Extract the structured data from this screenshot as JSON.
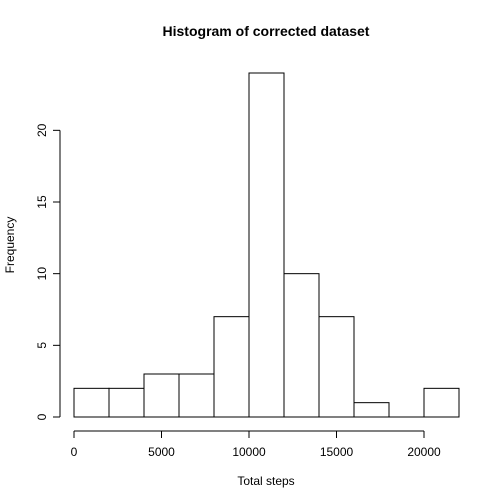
{
  "chart_data": {
    "type": "bar",
    "title": "Histogram of corrected dataset",
    "xlabel": "Total steps",
    "ylabel": "Frequency",
    "bins": [
      {
        "start": 0,
        "end": 2000,
        "count": 2
      },
      {
        "start": 2000,
        "end": 4000,
        "count": 2
      },
      {
        "start": 4000,
        "end": 6000,
        "count": 3
      },
      {
        "start": 6000,
        "end": 8000,
        "count": 3
      },
      {
        "start": 8000,
        "end": 10000,
        "count": 7
      },
      {
        "start": 10000,
        "end": 12000,
        "count": 24
      },
      {
        "start": 12000,
        "end": 14000,
        "count": 10
      },
      {
        "start": 14000,
        "end": 16000,
        "count": 7
      },
      {
        "start": 16000,
        "end": 18000,
        "count": 1
      },
      {
        "start": 18000,
        "end": 20000,
        "count": 0
      },
      {
        "start": 20000,
        "end": 22000,
        "count": 2
      }
    ],
    "xticks": [
      0,
      5000,
      10000,
      15000,
      20000
    ],
    "yticks": [
      0,
      5,
      10,
      15,
      20
    ],
    "xlim": [
      0,
      22000
    ],
    "ylim": [
      0,
      24
    ],
    "grid": false
  }
}
